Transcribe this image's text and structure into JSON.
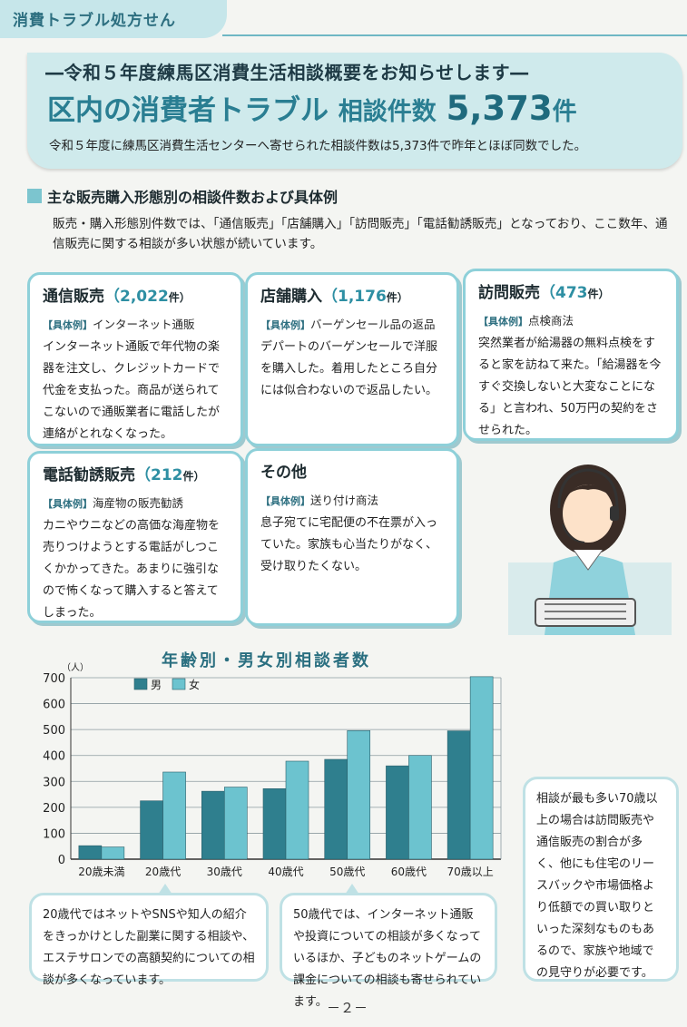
{
  "header": {
    "tab_title": "消費トラブル処方せん",
    "subtitle": "―令和５年度練馬区消費生活相談概要をお知らせします―",
    "title_main": "区内の消費者トラブル",
    "title_label": "相談件数",
    "title_count": "5,373",
    "title_unit": "件",
    "description": "令和５年度に練馬区消費生活センターへ寄せられた相談件数は5,373件で昨年とほぼ同数でした。"
  },
  "section": {
    "title": "主な販売購入形態別の相談件数および具体例",
    "description": "販売・購入形態別件数では、「通信販売」「店舗購入」「訪問販売」「電話勧誘販売」となっており、ここ数年、通信販売に関する相談が多い状態が続いています。"
  },
  "cards": [
    {
      "title": "通信販売",
      "count": "（2,022",
      "unit": "件）",
      "tag": "【具体例】",
      "example": "インターネット通販",
      "body": "インターネット通販で年代物の楽器を注文し、クレジットカードで代金を支払った。商品が送られてこないので通販業者に電話したが連絡がとれなくなった。"
    },
    {
      "title": "店舗購入",
      "count": "（1,176",
      "unit": "件）",
      "tag": "【具体例】",
      "example": "バーゲンセール品の返品",
      "body": "デパートのバーゲンセールで洋服を購入した。着用したところ自分には似合わないので返品したい。"
    },
    {
      "title": "訪問販売",
      "count": "（473",
      "unit": "件）",
      "tag": "【具体例】",
      "example": "点検商法",
      "body": "突然業者が給湯器の無料点検をすると家を訪ねて来た。「給湯器を今すぐ交換しないと大変なことになる」と言われ、50万円の契約をさせられた。"
    },
    {
      "title": "電話勧誘販売",
      "count": "（212",
      "unit": "件）",
      "tag": "【具体例】",
      "example": "海産物の販売勧誘",
      "body": "カニやウニなどの高価な海産物を売りつけようとする電話がしつこくかかってきた。あまりに強引なので怖くなって購入すると答えてしまった。"
    },
    {
      "title": "その他",
      "count": "",
      "unit": "",
      "tag": "【具体例】",
      "example": "送り付け商法",
      "body": "息子宛てに宅配便の不在票が入っていた。家族も心当たりがなく、受け取りたくない。"
    }
  ],
  "chart_data": {
    "type": "bar",
    "title": "年齢別・男女別相談者数",
    "ylabel": "（人）",
    "ylim": [
      0,
      700
    ],
    "yticks": [
      0,
      100,
      200,
      300,
      400,
      500,
      600,
      700
    ],
    "categories": [
      "20歳未満",
      "20歳代",
      "30歳代",
      "40歳代",
      "50歳代",
      "60歳代",
      "70歳以上"
    ],
    "series": [
      {
        "name": "男",
        "color": "#2f7f8e",
        "values": [
          52,
          225,
          262,
          272,
          385,
          360,
          495
        ]
      },
      {
        "name": "女",
        "color": "#6cc3cf",
        "values": [
          47,
          336,
          278,
          378,
          496,
          400,
          704
        ]
      }
    ],
    "grid": true,
    "legend": "top-left"
  },
  "notes": {
    "note1": "20歳代ではネットやSNSや知人の紹介をきっかけとした副業に関する相談や、エステサロンでの高額契約についての相談が多くなっています。",
    "note2": "50歳代では、インターネット通販や投資についての相談が多くなっているほか、子どものネットゲームの課金についての相談も寄せられています。",
    "note3": "相談が最も多い70歳以上の場合は訪問販売や通信販売の割合が多く、他にも住宅のリースバックや市場価格より低額での買い取りといった深刻なものもあるので、家族や地域での見守りが必要です。"
  },
  "page_number": "－２－"
}
